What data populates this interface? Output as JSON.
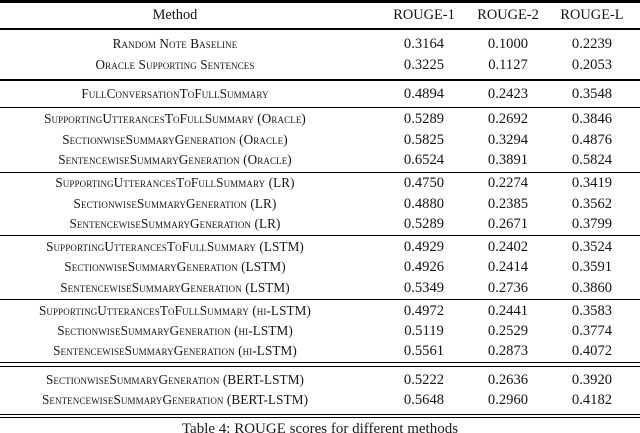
{
  "table": {
    "caption": "Table 4: ROUGE scores for different methods",
    "columns": [
      "Method",
      "ROUGE-1",
      "ROUGE-2",
      "ROUGE-L"
    ],
    "groups": [
      {
        "rows": [
          {
            "method": "Random Note Baseline",
            "scores": [
              "0.3164",
              "0.1000",
              "0.2239"
            ]
          },
          {
            "method": "Oracle Supporting Sentences",
            "scores": [
              "0.3225",
              "0.1127",
              "0.2053"
            ]
          }
        ]
      },
      {
        "rows": [
          {
            "method": "FullConversationToFullSummary",
            "scores": [
              "0.4894",
              "0.2423",
              "0.3548"
            ]
          }
        ]
      },
      {
        "rows": [
          {
            "method": "SupportingUtterancesToFullSummary (Oracle)",
            "scores": [
              "0.5289",
              "0.2692",
              "0.3846"
            ]
          },
          {
            "method": "SectionwiseSummaryGeneration (Oracle)",
            "scores": [
              "0.5825",
              "0.3294",
              "0.4876"
            ]
          },
          {
            "method": "SentencewiseSummaryGeneration (Oracle)",
            "scores": [
              "0.6524",
              "0.3891",
              "0.5824"
            ]
          }
        ]
      },
      {
        "rows": [
          {
            "method": "SupportingUtterancesToFullSummary (LR)",
            "scores": [
              "0.4750",
              "0.2274",
              "0.3419"
            ]
          },
          {
            "method": "SectionwiseSummaryGeneration (LR)",
            "scores": [
              "0.4880",
              "0.2385",
              "0.3562"
            ]
          },
          {
            "method": "SentencewiseSummaryGeneration (LR)",
            "scores": [
              "0.5289",
              "0.2671",
              "0.3799"
            ]
          }
        ]
      },
      {
        "rows": [
          {
            "method": "SupportingUtterancesToFullSummary (LSTM)",
            "scores": [
              "0.4929",
              "0.2402",
              "0.3524"
            ]
          },
          {
            "method": "SectionwiseSummaryGeneration (LSTM)",
            "scores": [
              "0.4926",
              "0.2414",
              "0.3591"
            ]
          },
          {
            "method": "SentencewiseSummaryGeneration (LSTM)",
            "scores": [
              "0.5349",
              "0.2736",
              "0.3860"
            ]
          }
        ]
      },
      {
        "rows": [
          {
            "method": "SupportingUtterancesToFullSummary (hi-LSTM)",
            "scores": [
              "0.4972",
              "0.2441",
              "0.3583"
            ]
          },
          {
            "method": "SectionwiseSummaryGeneration (hi-LSTM)",
            "scores": [
              "0.5119",
              "0.2529",
              "0.3774"
            ]
          },
          {
            "method": "SentencewiseSummaryGeneration (hi-LSTM)",
            "scores": [
              "0.5561",
              "0.2873",
              "0.4072"
            ]
          }
        ]
      },
      {
        "rows": [
          {
            "method": "SectionwiseSummaryGeneration (BERT-LSTM)",
            "scores": [
              "0.5222",
              "0.2636",
              "0.3920"
            ]
          },
          {
            "method": "SentencewiseSummaryGeneration (BERT-LSTM)",
            "scores": [
              "0.5648",
              "0.2960",
              "0.4182"
            ]
          }
        ]
      }
    ]
  },
  "colors": {
    "text": "#141414",
    "rule": "#000000",
    "background": "#ffffff"
  }
}
